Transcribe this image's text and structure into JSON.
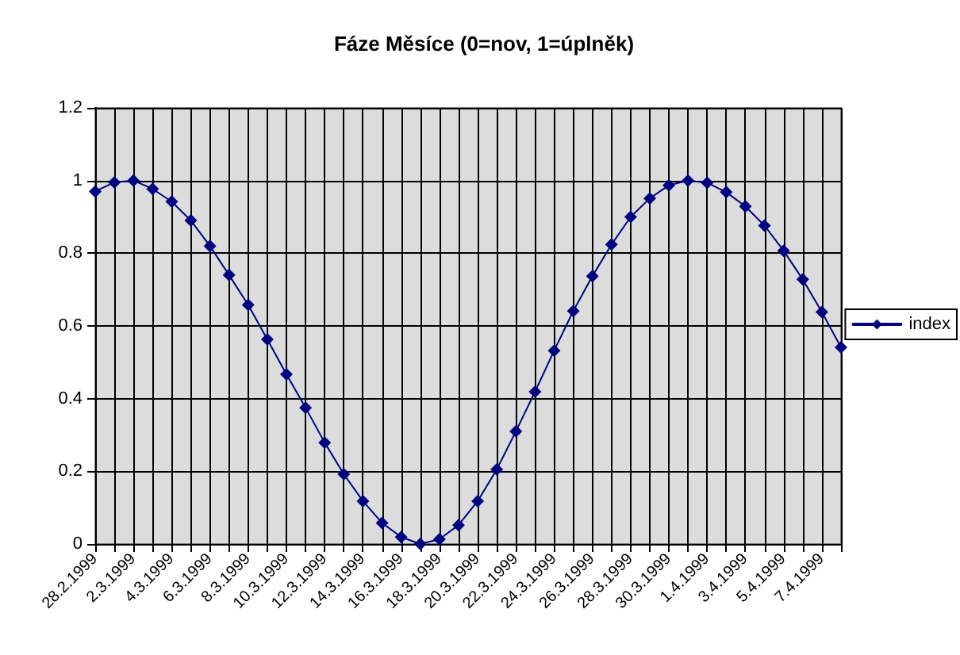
{
  "chart_data": {
    "type": "line",
    "title": "Fáze Měsíce (0=nov, 1=úplněk)",
    "categories": [
      "28.2.1999",
      null,
      "2.3.1999",
      null,
      "4.3.1999",
      null,
      "6.3.1999",
      null,
      "8.3.1999",
      null,
      "10.3.1999",
      null,
      "12.3.1999",
      null,
      "14.3.1999",
      null,
      "16.3.1999",
      null,
      "18.3.1999",
      null,
      "20.3.1999",
      null,
      "22.3.1999",
      null,
      "24.3.1999",
      null,
      "26.3.1999",
      null,
      "28.3.1999",
      null,
      "30.3.1999",
      null,
      "1.4.1999",
      null,
      "3.4.1999",
      null,
      "5.4.1999",
      null,
      "7.4.1999",
      null
    ],
    "series": [
      {
        "name": "index",
        "color": "#000080",
        "values": [
          0.97,
          0.995,
          1.0,
          0.977,
          0.942,
          0.89,
          0.82,
          0.74,
          0.658,
          0.563,
          0.467,
          0.375,
          0.279,
          0.192,
          0.118,
          0.058,
          0.019,
          0.0,
          0.013,
          0.052,
          0.118,
          0.205,
          0.31,
          0.419,
          0.532,
          0.641,
          0.737,
          0.824,
          0.9,
          0.951,
          0.987,
          1.0,
          0.994,
          0.968,
          0.929,
          0.876,
          0.807,
          0.728,
          0.638,
          0.541
        ]
      }
    ],
    "ylim": [
      0,
      1.2
    ],
    "yticks": [
      0,
      0.2,
      0.4,
      0.6,
      0.8,
      1,
      1.2
    ],
    "grid": true,
    "legend": "right",
    "marker": "diamond",
    "line_style": "solid"
  }
}
